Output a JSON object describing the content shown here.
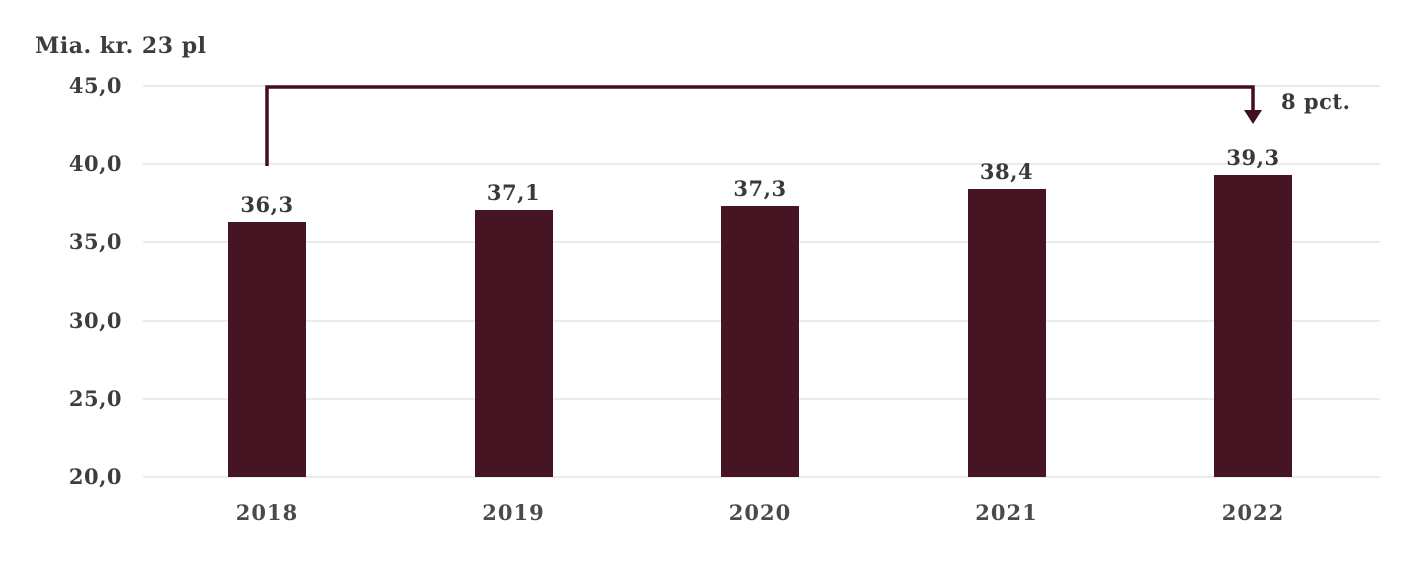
{
  "chart_data": {
    "type": "bar",
    "title": "Mia. kr. 23 pl",
    "categories": [
      "2018",
      "2019",
      "2020",
      "2021",
      "2022"
    ],
    "values": [
      36.3,
      37.1,
      37.3,
      38.4,
      39.3
    ],
    "value_labels": [
      "36,3",
      "37,1",
      "37,3",
      "38,4",
      "39,3"
    ],
    "xlabel": "",
    "ylabel": "Mia. kr. 23 pl",
    "ylim": [
      20,
      45
    ],
    "y_ticks": [
      45,
      40,
      35,
      30,
      25,
      20
    ],
    "y_tick_labels": [
      "45,0",
      "40,0",
      "35,0",
      "30,0",
      "25,0",
      "20,0"
    ],
    "grid": true,
    "legend_position": "none",
    "bar_color": "#451523",
    "grid_color": "#ebebeb",
    "text_color": "#3d3d3d",
    "annotation": {
      "text": "8 pct.",
      "from_category": "2018",
      "to_category": "2022",
      "arrow_color": "#430f20"
    }
  }
}
